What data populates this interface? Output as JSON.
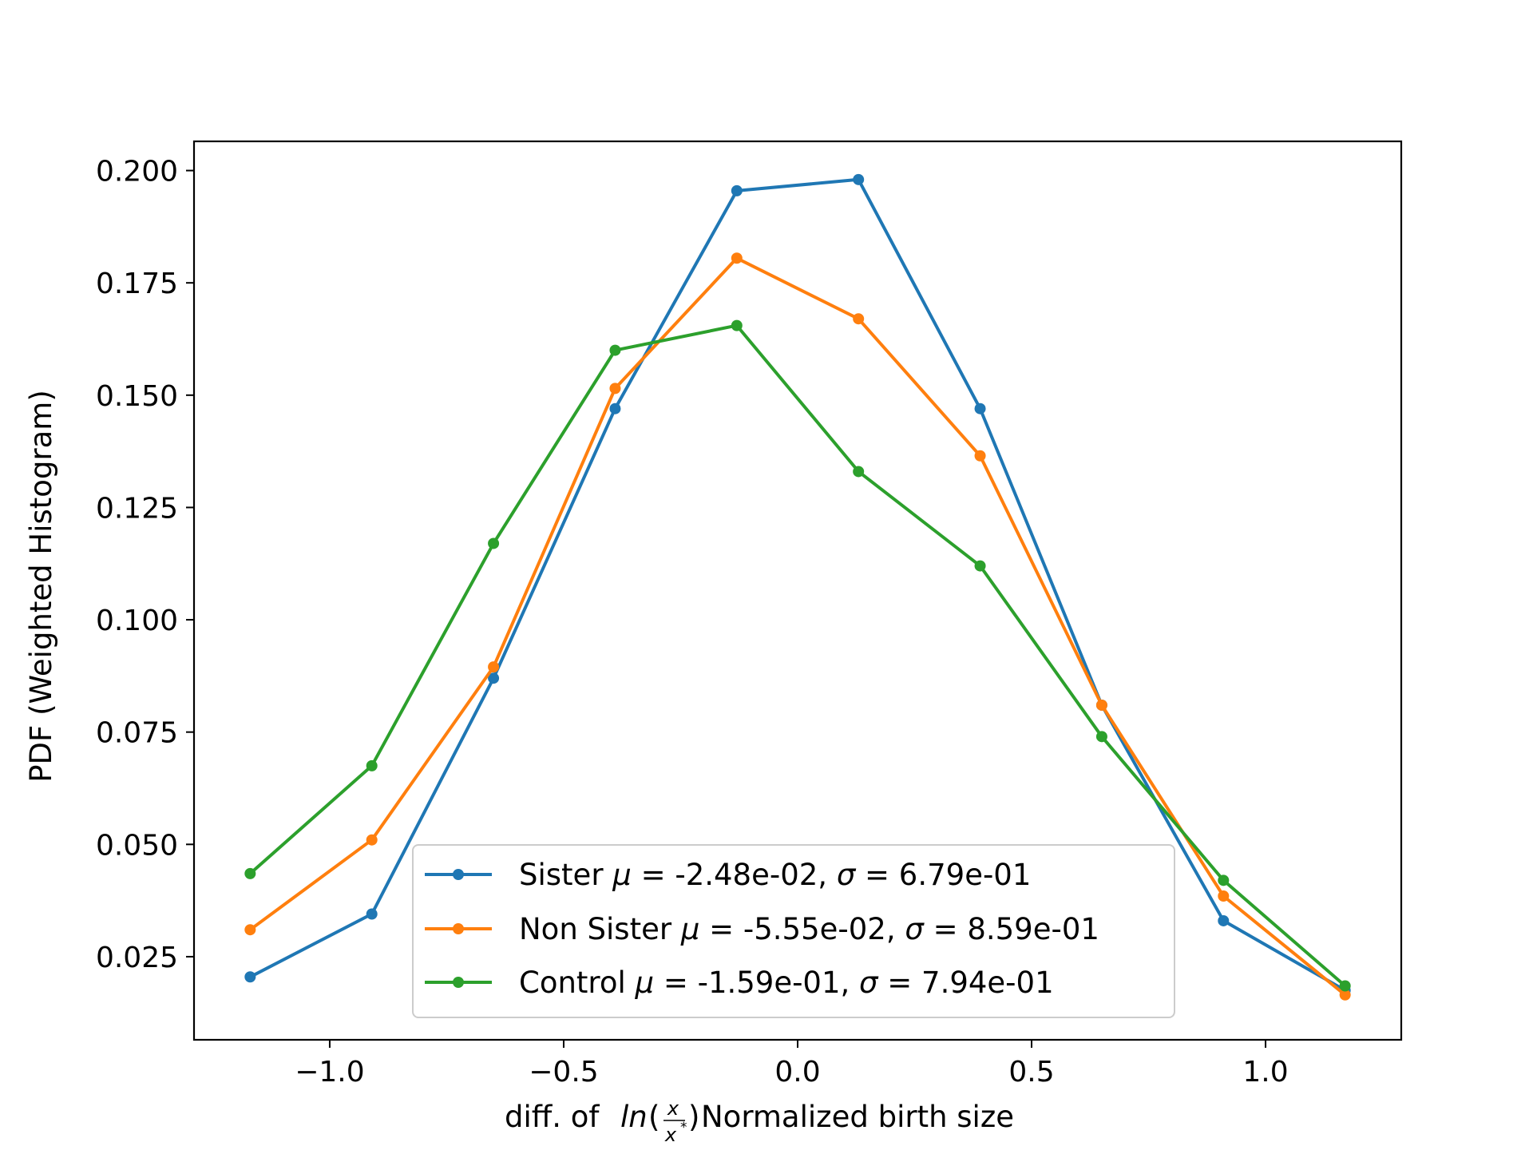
{
  "chart_data": {
    "type": "line",
    "title": "",
    "xlabel": "diff. of ln(x/x*) Normalized birth size",
    "xlabel_parts": {
      "prefix": "diff. of ",
      "func": "ln",
      "open": "(",
      "num": "x",
      "den": "x",
      "den_sup": "*",
      "close": ")",
      "suffix": " Normalized birth size"
    },
    "ylabel": "PDF (Weighted Histogram)",
    "xlim": [
      -1.29,
      1.29
    ],
    "ylim": [
      0.0065,
      0.2065
    ],
    "xticks": [
      -1.0,
      -0.5,
      0.0,
      0.5,
      1.0
    ],
    "xtick_labels": [
      "−1.0",
      "−0.5",
      "0.0",
      "0.5",
      "1.0"
    ],
    "yticks": [
      0.025,
      0.05,
      0.075,
      0.1,
      0.125,
      0.15,
      0.175,
      0.2
    ],
    "ytick_labels": [
      "0.025",
      "0.050",
      "0.075",
      "0.100",
      "0.125",
      "0.150",
      "0.175",
      "0.200"
    ],
    "x": [
      -1.17,
      -0.91,
      -0.65,
      -0.39,
      -0.13,
      0.13,
      0.39,
      0.65,
      0.91,
      1.17
    ],
    "series": [
      {
        "name": "Sister",
        "legend": {
          "prefix": "Sister ",
          "mu": "-2.48e-02",
          "sigma": "6.79e-01"
        },
        "color": "#1f77b4",
        "values": [
          0.0205,
          0.0345,
          0.087,
          0.147,
          0.1955,
          0.198,
          0.147,
          0.081,
          0.033,
          0.0175
        ]
      },
      {
        "name": "Non Sister",
        "legend": {
          "prefix": "Non Sister ",
          "mu": "-5.55e-02",
          "sigma": "8.59e-01"
        },
        "color": "#ff7f0e",
        "values": [
          0.031,
          0.051,
          0.0895,
          0.1515,
          0.1805,
          0.167,
          0.1365,
          0.081,
          0.0385,
          0.0165
        ]
      },
      {
        "name": "Control",
        "legend": {
          "prefix": "Control ",
          "mu": "-1.59e-01",
          "sigma": "7.94e-01"
        },
        "color": "#2ca02c",
        "values": [
          0.0435,
          0.0675,
          0.117,
          0.16,
          0.1655,
          0.133,
          0.112,
          0.074,
          0.042,
          0.0185
        ]
      }
    ],
    "legend_position": "lower center",
    "grid": false
  }
}
